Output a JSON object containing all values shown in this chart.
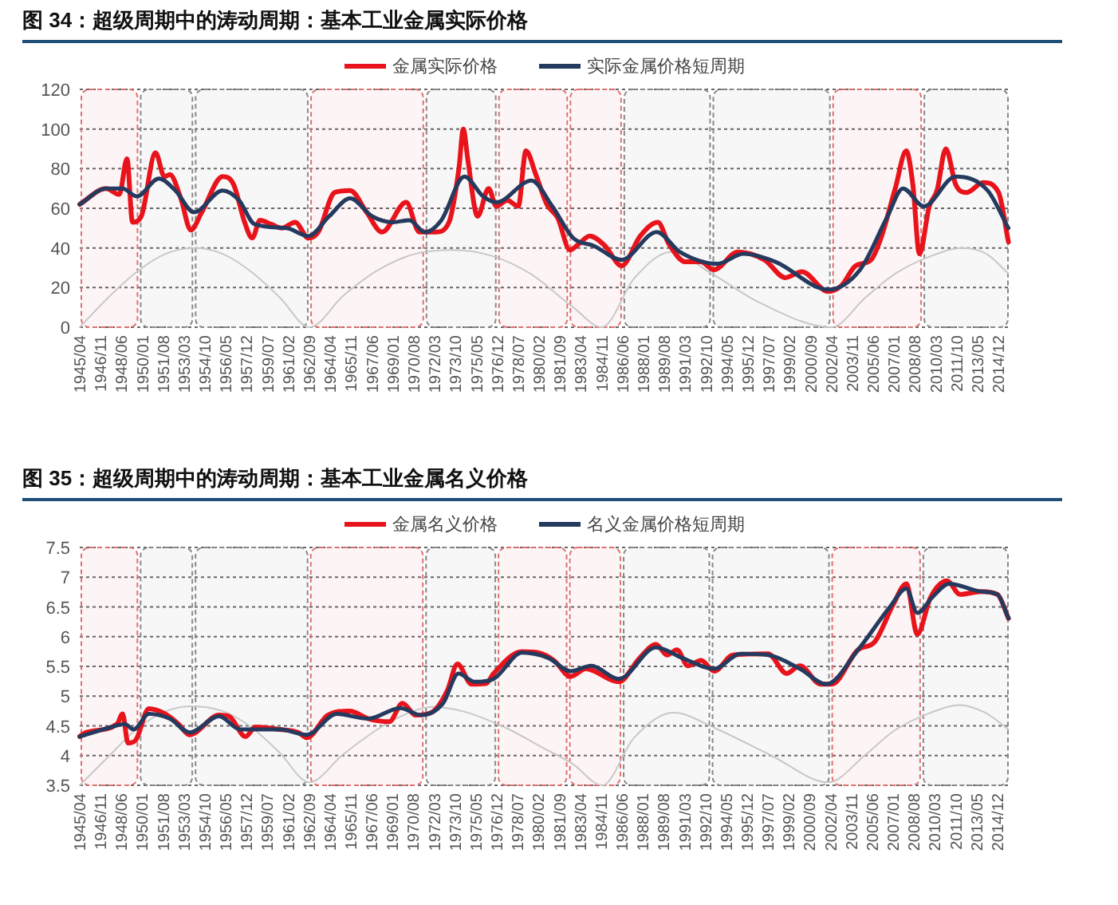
{
  "chart_data": [
    {
      "type": "line",
      "title": "图 34：超级周期中的涛动周期：基本工业金属实际价格",
      "legend": "top",
      "grid": "y",
      "xlim": [
        "1945-04",
        "2015-10"
      ],
      "ylim": [
        0,
        120
      ],
      "yticks": [
        0,
        20,
        40,
        60,
        80,
        100,
        120
      ],
      "xticks": [
        {
          "value": "1945-04",
          "label": "1945/04"
        },
        {
          "value": "1946-11",
          "label": "1946/11"
        },
        {
          "value": "1948-06",
          "label": "1948/06"
        },
        {
          "value": "1950-01",
          "label": "1950/01"
        },
        {
          "value": "1951-08",
          "label": "1951/08"
        },
        {
          "value": "1953-03",
          "label": "1953/03"
        },
        {
          "value": "1954-10",
          "label": "1954/10"
        },
        {
          "value": "1956-05",
          "label": "1956/05"
        },
        {
          "value": "1957-12",
          "label": "1957/12"
        },
        {
          "value": "1959-07",
          "label": "1959/07"
        },
        {
          "value": "1961-02",
          "label": "1961/02"
        },
        {
          "value": "1962-09",
          "label": "1962/09"
        },
        {
          "value": "1964-04",
          "label": "1964/04"
        },
        {
          "value": "1965-11",
          "label": "1965/11"
        },
        {
          "value": "1967-06",
          "label": "1967/06"
        },
        {
          "value": "1969-01",
          "label": "1969/01"
        },
        {
          "value": "1970-08",
          "label": "1970/08"
        },
        {
          "value": "1972-03",
          "label": "1972/03"
        },
        {
          "value": "1973-10",
          "label": "1973/10"
        },
        {
          "value": "1975-05",
          "label": "1975/05"
        },
        {
          "value": "1976-12",
          "label": "1976/12"
        },
        {
          "value": "1978-07",
          "label": "1978/07"
        },
        {
          "value": "1980-02",
          "label": "1980/02"
        },
        {
          "value": "1981-09",
          "label": "1981/09"
        },
        {
          "value": "1983-04",
          "label": "1983/04"
        },
        {
          "value": "1984-11",
          "label": "1984/11"
        },
        {
          "value": "1986-06",
          "label": "1986/06"
        },
        {
          "value": "1988-01",
          "label": "1988/01"
        },
        {
          "value": "1989-08",
          "label": "1989/08"
        },
        {
          "value": "1991-03",
          "label": "1991/03"
        },
        {
          "value": "1992-10",
          "label": "1992/10"
        },
        {
          "value": "1994-05",
          "label": "1994/05"
        },
        {
          "value": "1995-12",
          "label": "1995/12"
        },
        {
          "value": "1997-07",
          "label": "1997/07"
        },
        {
          "value": "1999-02",
          "label": "1999/02"
        },
        {
          "value": "2000-09",
          "label": "2000/09"
        },
        {
          "value": "2002-04",
          "label": "2002/04"
        },
        {
          "value": "2003-11",
          "label": "2003/11"
        },
        {
          "value": "2005-06",
          "label": "2005/06"
        },
        {
          "value": "2007-01",
          "label": "2007/01"
        },
        {
          "value": "2008-08",
          "label": "2008/08"
        },
        {
          "value": "2010-03",
          "label": "2010/03"
        },
        {
          "value": "2011-10",
          "label": "2011/10"
        },
        {
          "value": "2013-05",
          "label": "2013/05"
        },
        {
          "value": "2014-12",
          "label": "2014/12"
        }
      ],
      "bands": [
        {
          "axis": "x",
          "from": "1945-04",
          "to": "1949-10",
          "color": "#e07070"
        },
        {
          "axis": "x",
          "from": "1949-10",
          "to": "1953-12",
          "color": "#888888"
        },
        {
          "axis": "x",
          "from": "1953-12",
          "to": "1962-09",
          "color": "#888888"
        },
        {
          "axis": "x",
          "from": "1962-09",
          "to": "1971-06",
          "color": "#e07070"
        },
        {
          "axis": "x",
          "from": "1971-06",
          "to": "1976-12",
          "color": "#888888"
        },
        {
          "axis": "x",
          "from": "1976-12",
          "to": "1982-05",
          "color": "#e07070"
        },
        {
          "axis": "x",
          "from": "1982-05",
          "to": "1986-06",
          "color": "#e07070"
        },
        {
          "axis": "x",
          "from": "1986-06",
          "to": "1993-03",
          "color": "#888888"
        },
        {
          "axis": "x",
          "from": "1993-03",
          "to": "2002-04",
          "color": "#888888"
        },
        {
          "axis": "x",
          "from": "2002-04",
          "to": "2009-03",
          "color": "#e07070"
        },
        {
          "axis": "x",
          "from": "2009-03",
          "to": "2015-10",
          "color": "#888888"
        }
      ],
      "series": [
        {
          "color": "#c8c8c8",
          "x": [
            "1945-04",
            "1947-06",
            "1949-08",
            "1951-10",
            "1953-12",
            "1956-02",
            "1958-04",
            "1960-06",
            "1962-09",
            "1965-04",
            "1967-12",
            "1970-09",
            "1973-08",
            "1976-07",
            "1979-06",
            "1982-09",
            "1984-11",
            "1987-05",
            "1990-02",
            "1993-03",
            "1996-12",
            "2002-04",
            "2004-11",
            "2007-02",
            "2009-11",
            "2012-03",
            "2014-01",
            "2015-09"
          ],
          "values": [
            0,
            15,
            28,
            37,
            40,
            37,
            28,
            15,
            0,
            16,
            29,
            37,
            39,
            36,
            27,
            10,
            0,
            25,
            38,
            27,
            12,
            0,
            15,
            27,
            36,
            40,
            37,
            27
          ]
        },
        {
          "name": "金属实际价格",
          "color": "#e8131b",
          "x": [
            "1945-04",
            "1947-04",
            "1948-04",
            "1948-11",
            "1949-04",
            "1949-12",
            "1951-01",
            "1951-09",
            "1952-02",
            "1952-12",
            "1953-09",
            "1954-07",
            "1956-02",
            "1956-12",
            "1957-10",
            "1958-05",
            "1958-12",
            "1959-10",
            "1960-08",
            "1961-08",
            "1962-08",
            "1963-05",
            "1964-08",
            "1965-10",
            "1967-01",
            "1968-03",
            "1970-01",
            "1971-01",
            "1972-04",
            "1973-04",
            "1974-01",
            "1974-05",
            "1974-09",
            "1975-06",
            "1976-04",
            "1976-11",
            "1977-09",
            "1978-07",
            "1979-02",
            "1979-11",
            "1980-09",
            "1981-07",
            "1982-06",
            "1983-02",
            "1983-12",
            "1985-02",
            "1986-05",
            "1987-10",
            "1989-02",
            "1989-12",
            "1991-03",
            "1992-05",
            "1993-05",
            "1995-03",
            "1997-03",
            "1998-10",
            "2000-01",
            "2002-01",
            "2003-01",
            "2004-02",
            "2005-04",
            "2006-01",
            "2007-02",
            "2007-12",
            "2008-06",
            "2008-12",
            "2009-09",
            "2010-04",
            "2010-12",
            "2011-09",
            "2012-07",
            "2013-10",
            "2014-12",
            "2015-09"
          ],
          "values": [
            62,
            70,
            67,
            85,
            53,
            56,
            88,
            76,
            77,
            65,
            49,
            58,
            76,
            72,
            53,
            45,
            54,
            52,
            50,
            53,
            45,
            48,
            68,
            69,
            58,
            48,
            63,
            48,
            48,
            53,
            80,
            100,
            85,
            56,
            70,
            61,
            64,
            61,
            89,
            77,
            62,
            55,
            39,
            42,
            46,
            41,
            31,
            46,
            53,
            42,
            33,
            33,
            29,
            38,
            34,
            25,
            28,
            18,
            21,
            31,
            34,
            45,
            70,
            89,
            72,
            37,
            61,
            69,
            90,
            72,
            68,
            73,
            68,
            43
          ]
        },
        {
          "name": "实际金属价格短周期",
          "color": "#243a5e",
          "x": [
            "1945-04",
            "1947-04",
            "1948-07",
            "1949-08",
            "1951-04",
            "1952-07",
            "1953-12",
            "1956-02",
            "1957-05",
            "1958-07",
            "1960-12",
            "1962-08",
            "1964-03",
            "1965-10",
            "1967-06",
            "1969-01",
            "1970-04",
            "1971-06",
            "1972-09",
            "1974-06",
            "1975-11",
            "1976-11",
            "1979-07",
            "1981-02",
            "1982-09",
            "1984-04",
            "1986-05",
            "1989-01",
            "1990-10",
            "1993-08",
            "1995-08",
            "1998-01",
            "2002-01",
            "2004-06",
            "2006-07",
            "2007-09",
            "2009-04",
            "2011-09",
            "2014-02",
            "2015-09"
          ],
          "values": [
            62,
            70,
            70,
            66,
            75,
            69,
            58,
            69,
            64,
            52,
            50,
            46,
            56,
            65,
            56,
            53,
            54,
            48,
            54,
            76,
            66,
            63,
            74,
            61,
            45,
            41,
            34,
            48,
            38,
            32,
            37,
            33,
            19,
            29,
            56,
            70,
            61,
            76,
            69,
            50
          ]
        }
      ]
    },
    {
      "type": "line",
      "title": "图 35：超级周期中的涛动周期：基本工业金属名义价格",
      "legend": "top",
      "grid": "y",
      "xlim": [
        "1945-04",
        "2015-11"
      ],
      "ylim": [
        3.5,
        7.5
      ],
      "yticks": [
        3.5,
        4,
        4.5,
        5,
        5.5,
        6,
        6.5,
        7,
        7.5
      ],
      "xticks": [
        {
          "value": "1945-04",
          "label": "1945/04"
        },
        {
          "value": "1946-11",
          "label": "1946/11"
        },
        {
          "value": "1948-06",
          "label": "1948/06"
        },
        {
          "value": "1950-01",
          "label": "1950/01"
        },
        {
          "value": "1951-08",
          "label": "1951/08"
        },
        {
          "value": "1953-03",
          "label": "1953/03"
        },
        {
          "value": "1954-10",
          "label": "1954/10"
        },
        {
          "value": "1956-05",
          "label": "1956/05"
        },
        {
          "value": "1957-12",
          "label": "1957/12"
        },
        {
          "value": "1959-07",
          "label": "1959/07"
        },
        {
          "value": "1961-02",
          "label": "1961/02"
        },
        {
          "value": "1962-09",
          "label": "1962/09"
        },
        {
          "value": "1964-04",
          "label": "1964/04"
        },
        {
          "value": "1965-11",
          "label": "1965/11"
        },
        {
          "value": "1967-06",
          "label": "1967/06"
        },
        {
          "value": "1969-01",
          "label": "1969/01"
        },
        {
          "value": "1970-08",
          "label": "1970/08"
        },
        {
          "value": "1972-03",
          "label": "1972/03"
        },
        {
          "value": "1973-10",
          "label": "1973/10"
        },
        {
          "value": "1975-05",
          "label": "1975/05"
        },
        {
          "value": "1976-12",
          "label": "1976/12"
        },
        {
          "value": "1978-07",
          "label": "1978/07"
        },
        {
          "value": "1980-02",
          "label": "1980/02"
        },
        {
          "value": "1981-09",
          "label": "1981/09"
        },
        {
          "value": "1983-04",
          "label": "1983/04"
        },
        {
          "value": "1984-11",
          "label": "1984/11"
        },
        {
          "value": "1986-06",
          "label": "1986/06"
        },
        {
          "value": "1988-01",
          "label": "1988/01"
        },
        {
          "value": "1989-08",
          "label": "1989/08"
        },
        {
          "value": "1991-03",
          "label": "1991/03"
        },
        {
          "value": "1992-10",
          "label": "1992/10"
        },
        {
          "value": "1994-05",
          "label": "1994/05"
        },
        {
          "value": "1995-12",
          "label": "1995/12"
        },
        {
          "value": "1997-07",
          "label": "1997/07"
        },
        {
          "value": "1999-02",
          "label": "1999/02"
        },
        {
          "value": "2000-09",
          "label": "2000/09"
        },
        {
          "value": "2002-04",
          "label": "2002/04"
        },
        {
          "value": "2003-11",
          "label": "2003/11"
        },
        {
          "value": "2005-06",
          "label": "2005/06"
        },
        {
          "value": "2007-01",
          "label": "2007/01"
        },
        {
          "value": "2008-08",
          "label": "2008/08"
        },
        {
          "value": "2010-03",
          "label": "2010/03"
        },
        {
          "value": "2011-10",
          "label": "2011/10"
        },
        {
          "value": "2013-05",
          "label": "2013/05"
        },
        {
          "value": "2014-12",
          "label": "2014/12"
        }
      ],
      "bands": [
        {
          "axis": "x",
          "from": "1945-04",
          "to": "1949-10",
          "color": "#e07070"
        },
        {
          "axis": "x",
          "from": "1949-10",
          "to": "1953-12",
          "color": "#888888"
        },
        {
          "axis": "x",
          "from": "1953-12",
          "to": "1962-09",
          "color": "#888888"
        },
        {
          "axis": "x",
          "from": "1962-09",
          "to": "1971-06",
          "color": "#e07070"
        },
        {
          "axis": "x",
          "from": "1971-06",
          "to": "1976-12",
          "color": "#888888"
        },
        {
          "axis": "x",
          "from": "1976-12",
          "to": "1982-05",
          "color": "#e07070"
        },
        {
          "axis": "x",
          "from": "1982-05",
          "to": "1986-06",
          "color": "#e07070"
        },
        {
          "axis": "x",
          "from": "1986-06",
          "to": "1993-03",
          "color": "#888888"
        },
        {
          "axis": "x",
          "from": "1993-03",
          "to": "2002-04",
          "color": "#888888"
        },
        {
          "axis": "x",
          "from": "2002-04",
          "to": "2009-03",
          "color": "#e07070"
        },
        {
          "axis": "x",
          "from": "2009-03",
          "to": "2015-11",
          "color": "#888888"
        }
      ],
      "series": [
        {
          "color": "#c8c8c8",
          "x": [
            "1945-04",
            "1947-06",
            "1949-08",
            "1951-10",
            "1953-08",
            "1956-02",
            "1958-04",
            "1960-06",
            "1962-09",
            "1965-04",
            "1967-12",
            "1970-04",
            "1971-12",
            "1974-06",
            "1977-10",
            "1980-04",
            "1982-09",
            "1984-12",
            "1987-05",
            "1990-05",
            "1993-08",
            "1997-10",
            "2002-02",
            "2004-11",
            "2007-02",
            "2009-11",
            "2012-01",
            "2014-01",
            "2015-10"
          ],
          "values": [
            3.5,
            3.98,
            4.45,
            4.74,
            4.83,
            4.75,
            4.48,
            4.05,
            3.55,
            4.02,
            4.45,
            4.72,
            4.82,
            4.74,
            4.45,
            4.15,
            3.86,
            3.5,
            4.3,
            4.72,
            4.45,
            4.0,
            3.55,
            4.0,
            4.42,
            4.72,
            4.85,
            4.72,
            4.44
          ]
        },
        {
          "name": "金属名义价格",
          "color": "#e8131b",
          "x": [
            "1945-04",
            "1945-10",
            "1948-02",
            "1948-07",
            "1948-12",
            "1949-07",
            "1950-07",
            "1951-10",
            "1952-10",
            "1953-08",
            "1955-11",
            "1956-08",
            "1957-11",
            "1958-08",
            "1960-06",
            "1961-11",
            "1962-07",
            "1964-02",
            "1965-10",
            "1967-03",
            "1968-10",
            "1969-10",
            "1970-10",
            "1972-01",
            "1973-03",
            "1973-12",
            "1975-01",
            "1976-02",
            "1976-09",
            "1978-11",
            "1980-02",
            "1981-04",
            "1982-07",
            "1983-09",
            "1986-03",
            "1987-10",
            "1989-01",
            "1989-11",
            "1990-08",
            "1991-06",
            "1992-06",
            "1993-06",
            "1994-11",
            "1997-07",
            "1998-12",
            "1999-12",
            "2001-07",
            "2002-05",
            "2004-05",
            "2005-08",
            "2007-01",
            "2008-01",
            "2008-11",
            "2009-11",
            "2011-02",
            "2012-02",
            "2013-09",
            "2014-12",
            "2015-10"
          ],
          "values": [
            4.32,
            4.39,
            4.53,
            4.7,
            4.21,
            4.26,
            4.79,
            4.7,
            4.53,
            4.35,
            4.68,
            4.66,
            4.32,
            4.48,
            4.44,
            4.39,
            4.3,
            4.68,
            4.75,
            4.62,
            4.57,
            4.88,
            4.68,
            4.73,
            5.1,
            5.54,
            5.2,
            5.21,
            5.38,
            5.75,
            5.73,
            5.6,
            5.33,
            5.46,
            5.24,
            5.64,
            5.87,
            5.69,
            5.78,
            5.51,
            5.6,
            5.42,
            5.69,
            5.71,
            5.38,
            5.51,
            5.2,
            5.2,
            5.78,
            5.91,
            6.54,
            6.89,
            6.04,
            6.66,
            6.94,
            6.71,
            6.76,
            6.71,
            6.31
          ]
        },
        {
          "name": "名义金属价格短周期",
          "color": "#243a5e",
          "x": [
            "1945-04",
            "1947-09",
            "1948-09",
            "1949-05",
            "1950-07",
            "1952-02",
            "1953-08",
            "1955-11",
            "1957-06",
            "1960-06",
            "1962-07",
            "1964-10",
            "1967-03",
            "1969-08",
            "1971-03",
            "1972-11",
            "1974-01",
            "1975-04",
            "1976-09",
            "1978-11",
            "1980-11",
            "1982-07",
            "1984-02",
            "1986-03",
            "1989-01",
            "1991-01",
            "1993-06",
            "1995-06",
            "1997-07",
            "1999-12",
            "2001-12",
            "2004-05",
            "2006-10",
            "2008-01",
            "2008-11",
            "2010-01",
            "2011-04",
            "2013-09",
            "2014-12",
            "2015-10"
          ],
          "values": [
            4.32,
            4.48,
            4.53,
            4.44,
            4.7,
            4.62,
            4.39,
            4.66,
            4.44,
            4.44,
            4.35,
            4.7,
            4.62,
            4.8,
            4.68,
            4.88,
            5.38,
            5.24,
            5.29,
            5.73,
            5.64,
            5.42,
            5.51,
            5.29,
            5.82,
            5.64,
            5.46,
            5.71,
            5.69,
            5.46,
            5.2,
            5.78,
            6.5,
            6.81,
            6.4,
            6.67,
            6.89,
            6.76,
            6.71,
            6.31
          ]
        }
      ]
    }
  ]
}
